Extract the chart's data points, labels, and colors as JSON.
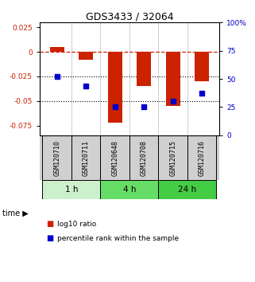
{
  "title": "GDS3433 / 32064",
  "samples": [
    "GSM120710",
    "GSM120711",
    "GSM120648",
    "GSM120708",
    "GSM120715",
    "GSM120716"
  ],
  "log10_ratio": [
    0.005,
    -0.008,
    -0.072,
    -0.035,
    -0.055,
    -0.03
  ],
  "percentile_rank": [
    52,
    44,
    25,
    25,
    30,
    37
  ],
  "time_groups": [
    {
      "label": "1 h",
      "span": [
        0,
        2
      ],
      "color": "#ccf0cc"
    },
    {
      "label": "4 h",
      "span": [
        2,
        4
      ],
      "color": "#66dd66"
    },
    {
      "label": "24 h",
      "span": [
        4,
        6
      ],
      "color": "#44cc44"
    }
  ],
  "ylim_left": [
    -0.085,
    0.03
  ],
  "ylim_right": [
    0,
    100
  ],
  "yticks_left": [
    0.025,
    0,
    -0.025,
    -0.05,
    -0.075
  ],
  "yticks_right": [
    100,
    75,
    50,
    25,
    0
  ],
  "bar_color": "#cc2200",
  "point_color": "#0000cc",
  "bar_width": 0.5,
  "point_size": 25,
  "hline_y": 0,
  "dotted_lines": [
    -0.025,
    -0.05
  ],
  "legend_items": [
    "log10 ratio",
    "percentile rank within the sample"
  ],
  "background_color": "#ffffff",
  "plot_bg": "#ffffff",
  "label_bg": "#d0d0d0"
}
